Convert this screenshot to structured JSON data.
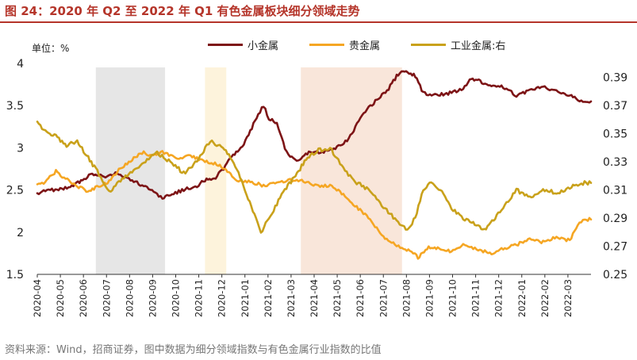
{
  "title": "图 24：2020 年 Q2 至 2022 年 Q1 有色金属板块细分领域走势",
  "unit_label": "单位：%",
  "source": "资料来源：Wind，招商证券，图中数据为细分领域指数与有色金属行业指数的比值",
  "colors": {
    "small_metal": "#7d1416",
    "precious_metal": "#f5a623",
    "industrial_metal": "#c9a11b",
    "band_gray": "#e6e6e6",
    "band_yellow": "#fdf3dc",
    "band_pink": "#f9e6da",
    "title": "#b5352a"
  },
  "chart_data": {
    "type": "line",
    "title": "2020 年 Q2 至 2022 年 Q1 有色金属板块细分领域走势",
    "x_tick_labels": [
      "2020-04",
      "2020-05",
      "2020-06",
      "2020-07",
      "2020-08",
      "2020-09",
      "2020-10",
      "2020-11",
      "2020-12",
      "2021-01",
      "2021-02",
      "2021-03",
      "2021-04",
      "2021-05",
      "2021-06",
      "2021-07",
      "2021-08",
      "2021-09",
      "2021-10",
      "2021-11",
      "2021-12",
      "2022-01",
      "2022-02",
      "2022-03"
    ],
    "x_range": [
      2020.25,
      2022.33
    ],
    "left_axis": {
      "ylim": [
        1.5,
        4
      ],
      "ticks": [
        "4",
        "3.5",
        "3",
        "2.5",
        "2",
        "1.5"
      ]
    },
    "right_axis": {
      "ylim": [
        0.25,
        0.4
      ],
      "ticks": [
        "0.39",
        "0.37",
        "0.35",
        "0.33",
        "0.31",
        "0.29",
        "0.27",
        "0.25"
      ]
    },
    "legend": [
      {
        "name": "小金属",
        "color_key": "small_metal"
      },
      {
        "name": "贵金属",
        "color_key": "precious_metal"
      },
      {
        "name": "工业金属:右",
        "color_key": "industrial_metal"
      }
    ],
    "highlight_periods": [
      {
        "start": 2020.47,
        "end": 2020.73,
        "color_key": "band_gray"
      },
      {
        "start": 2020.88,
        "end": 2020.96,
        "color_key": "band_yellow"
      },
      {
        "start": 2021.24,
        "end": 2021.62,
        "color_key": "band_pink"
      }
    ],
    "series": [
      {
        "name": "小金属",
        "axis": "left",
        "color_key": "small_metal",
        "points": [
          [
            2020.25,
            2.45
          ],
          [
            2020.28,
            2.5
          ],
          [
            2020.33,
            2.5
          ],
          [
            2020.38,
            2.55
          ],
          [
            2020.42,
            2.62
          ],
          [
            2020.45,
            2.68
          ],
          [
            2020.5,
            2.66
          ],
          [
            2020.55,
            2.7
          ],
          [
            2020.6,
            2.62
          ],
          [
            2020.65,
            2.55
          ],
          [
            2020.7,
            2.45
          ],
          [
            2020.72,
            2.4
          ],
          [
            2020.75,
            2.45
          ],
          [
            2020.8,
            2.5
          ],
          [
            2020.85,
            2.55
          ],
          [
            2020.88,
            2.62
          ],
          [
            2020.92,
            2.65
          ],
          [
            2020.95,
            2.75
          ],
          [
            2020.98,
            2.9
          ],
          [
            2021.02,
            3.0
          ],
          [
            2021.05,
            3.2
          ],
          [
            2021.08,
            3.4
          ],
          [
            2021.1,
            3.5
          ],
          [
            2021.12,
            3.35
          ],
          [
            2021.15,
            3.3
          ],
          [
            2021.18,
            3.0
          ],
          [
            2021.2,
            2.9
          ],
          [
            2021.23,
            2.85
          ],
          [
            2021.27,
            2.95
          ],
          [
            2021.32,
            2.95
          ],
          [
            2021.37,
            3.0
          ],
          [
            2021.42,
            3.1
          ],
          [
            2021.47,
            3.4
          ],
          [
            2021.52,
            3.55
          ],
          [
            2021.57,
            3.7
          ],
          [
            2021.6,
            3.85
          ],
          [
            2021.63,
            3.92
          ],
          [
            2021.67,
            3.85
          ],
          [
            2021.7,
            3.65
          ],
          [
            2021.75,
            3.62
          ],
          [
            2021.8,
            3.65
          ],
          [
            2021.85,
            3.7
          ],
          [
            2021.88,
            3.82
          ],
          [
            2021.92,
            3.78
          ],
          [
            2021.95,
            3.75
          ],
          [
            2022.0,
            3.72
          ],
          [
            2022.05,
            3.62
          ],
          [
            2022.1,
            3.68
          ],
          [
            2022.15,
            3.72
          ],
          [
            2022.2,
            3.68
          ],
          [
            2022.25,
            3.62
          ],
          [
            2022.3,
            3.55
          ],
          [
            2022.33,
            3.55
          ]
        ]
      },
      {
        "name": "贵金属",
        "axis": "left",
        "color_key": "precious_metal",
        "points": [
          [
            2020.25,
            2.55
          ],
          [
            2020.28,
            2.6
          ],
          [
            2020.32,
            2.72
          ],
          [
            2020.35,
            2.65
          ],
          [
            2020.4,
            2.55
          ],
          [
            2020.44,
            2.48
          ],
          [
            2020.48,
            2.55
          ],
          [
            2020.52,
            2.6
          ],
          [
            2020.55,
            2.72
          ],
          [
            2020.6,
            2.85
          ],
          [
            2020.65,
            2.95
          ],
          [
            2020.68,
            2.9
          ],
          [
            2020.72,
            2.95
          ],
          [
            2020.77,
            2.88
          ],
          [
            2020.82,
            2.9
          ],
          [
            2020.88,
            2.85
          ],
          [
            2020.93,
            2.8
          ],
          [
            2020.97,
            2.7
          ],
          [
            2021.0,
            2.62
          ],
          [
            2021.05,
            2.6
          ],
          [
            2021.1,
            2.55
          ],
          [
            2021.15,
            2.58
          ],
          [
            2021.2,
            2.62
          ],
          [
            2021.25,
            2.6
          ],
          [
            2021.3,
            2.55
          ],
          [
            2021.35,
            2.55
          ],
          [
            2021.4,
            2.45
          ],
          [
            2021.45,
            2.3
          ],
          [
            2021.5,
            2.15
          ],
          [
            2021.55,
            1.95
          ],
          [
            2021.6,
            1.85
          ],
          [
            2021.62,
            1.82
          ],
          [
            2021.65,
            1.78
          ],
          [
            2021.68,
            1.7
          ],
          [
            2021.72,
            1.82
          ],
          [
            2021.76,
            1.8
          ],
          [
            2021.8,
            1.78
          ],
          [
            2021.85,
            1.85
          ],
          [
            2021.9,
            1.8
          ],
          [
            2021.95,
            1.75
          ],
          [
            2022.0,
            1.8
          ],
          [
            2022.05,
            1.85
          ],
          [
            2022.1,
            1.92
          ],
          [
            2022.15,
            1.88
          ],
          [
            2022.2,
            1.95
          ],
          [
            2022.25,
            1.9
          ],
          [
            2022.28,
            2.1
          ],
          [
            2022.3,
            2.15
          ],
          [
            2022.33,
            2.15
          ]
        ]
      },
      {
        "name": "工业金属:右",
        "axis": "right",
        "color_key": "industrial_metal",
        "points": [
          [
            2020.25,
            0.358
          ],
          [
            2020.28,
            0.352
          ],
          [
            2020.32,
            0.348
          ],
          [
            2020.36,
            0.342
          ],
          [
            2020.4,
            0.344
          ],
          [
            2020.43,
            0.336
          ],
          [
            2020.47,
            0.325
          ],
          [
            2020.5,
            0.315
          ],
          [
            2020.52,
            0.308
          ],
          [
            2020.55,
            0.315
          ],
          [
            2020.6,
            0.322
          ],
          [
            2020.65,
            0.33
          ],
          [
            2020.7,
            0.336
          ],
          [
            2020.75,
            0.33
          ],
          [
            2020.8,
            0.322
          ],
          [
            2020.85,
            0.33
          ],
          [
            2020.9,
            0.345
          ],
          [
            2020.93,
            0.342
          ],
          [
            2020.97,
            0.335
          ],
          [
            2021.0,
            0.325
          ],
          [
            2021.03,
            0.31
          ],
          [
            2021.06,
            0.295
          ],
          [
            2021.09,
            0.28
          ],
          [
            2021.12,
            0.29
          ],
          [
            2021.15,
            0.3
          ],
          [
            2021.18,
            0.31
          ],
          [
            2021.22,
            0.32
          ],
          [
            2021.26,
            0.332
          ],
          [
            2021.3,
            0.338
          ],
          [
            2021.35,
            0.34
          ],
          [
            2021.4,
            0.325
          ],
          [
            2021.45,
            0.315
          ],
          [
            2021.5,
            0.31
          ],
          [
            2021.55,
            0.298
          ],
          [
            2021.6,
            0.288
          ],
          [
            2021.64,
            0.282
          ],
          [
            2021.67,
            0.29
          ],
          [
            2021.7,
            0.31
          ],
          [
            2021.73,
            0.315
          ],
          [
            2021.77,
            0.31
          ],
          [
            2021.8,
            0.298
          ],
          [
            2021.85,
            0.29
          ],
          [
            2021.9,
            0.285
          ],
          [
            2021.93,
            0.282
          ],
          [
            2021.97,
            0.29
          ],
          [
            2022.0,
            0.298
          ],
          [
            2022.05,
            0.31
          ],
          [
            2022.1,
            0.305
          ],
          [
            2022.15,
            0.31
          ],
          [
            2022.2,
            0.308
          ],
          [
            2022.25,
            0.312
          ],
          [
            2022.3,
            0.315
          ],
          [
            2022.33,
            0.315
          ]
        ]
      }
    ]
  }
}
